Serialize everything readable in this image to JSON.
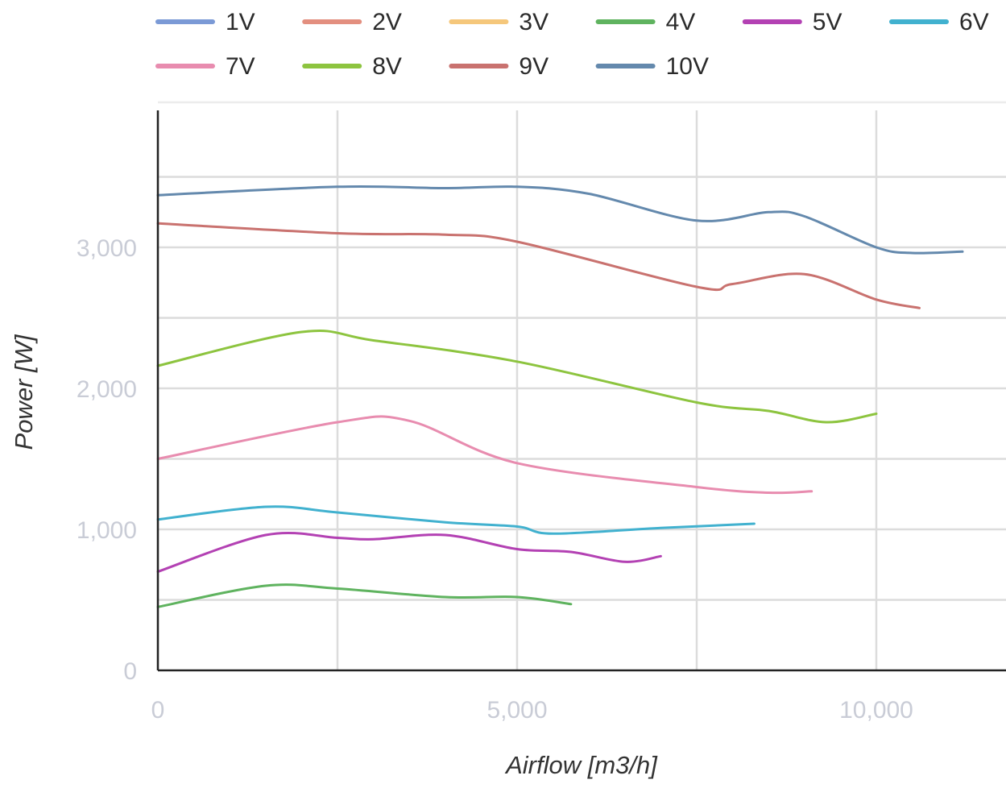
{
  "chart_data": {
    "type": "line",
    "title": "",
    "xlabel": "Airflow [m3/h]",
    "ylabel": "Power [W]",
    "xlim": [
      0,
      11900
    ],
    "ylim": [
      0,
      4000
    ],
    "x_ticks": [
      {
        "value": 0,
        "label": "0"
      },
      {
        "value": 5000,
        "label": "5,000"
      },
      {
        "value": 10000,
        "label": "10,000"
      }
    ],
    "y_ticks": [
      {
        "value": 0,
        "label": "0"
      },
      {
        "value": 1000,
        "label": "1,000"
      },
      {
        "value": 2000,
        "label": "2,000"
      },
      {
        "value": 3000,
        "label": "3,000"
      }
    ],
    "x_grid": [
      0,
      2500,
      5000,
      7500,
      10000
    ],
    "y_grid": [
      500,
      1000,
      1500,
      2000,
      2500,
      3000,
      3500
    ],
    "grid": true,
    "legend_position": "top",
    "series": [
      {
        "name": "1V",
        "color": "#7b9ad6",
        "points": []
      },
      {
        "name": "2V",
        "color": "#e38f7f",
        "points": []
      },
      {
        "name": "3V",
        "color": "#f5c77b",
        "points": []
      },
      {
        "name": "4V",
        "color": "#5fb35f",
        "points": [
          [
            0,
            450
          ],
          [
            1500,
            600
          ],
          [
            2500,
            580
          ],
          [
            4000,
            520
          ],
          [
            5000,
            520
          ],
          [
            5750,
            470
          ]
        ]
      },
      {
        "name": "5V",
        "color": "#b341b3",
        "points": [
          [
            0,
            700
          ],
          [
            1500,
            960
          ],
          [
            2500,
            940
          ],
          [
            3000,
            930
          ],
          [
            4000,
            960
          ],
          [
            5000,
            860
          ],
          [
            5750,
            840
          ],
          [
            6500,
            770
          ],
          [
            7000,
            810
          ]
        ]
      },
      {
        "name": "6V",
        "color": "#41b1cf",
        "points": [
          [
            0,
            1070
          ],
          [
            1500,
            1160
          ],
          [
            2500,
            1120
          ],
          [
            4000,
            1050
          ],
          [
            5000,
            1020
          ],
          [
            5500,
            970
          ],
          [
            7000,
            1010
          ],
          [
            8300,
            1040
          ]
        ]
      },
      {
        "name": "7V",
        "color": "#e88caf",
        "points": [
          [
            0,
            1500
          ],
          [
            2500,
            1760
          ],
          [
            3500,
            1770
          ],
          [
            5000,
            1470
          ],
          [
            7500,
            1300
          ],
          [
            8500,
            1260
          ],
          [
            9100,
            1270
          ]
        ]
      },
      {
        "name": "8V",
        "color": "#8dc43f",
        "points": [
          [
            0,
            2160
          ],
          [
            2000,
            2400
          ],
          [
            3000,
            2340
          ],
          [
            5000,
            2190
          ],
          [
            7500,
            1900
          ],
          [
            8500,
            1840
          ],
          [
            9300,
            1760
          ],
          [
            10000,
            1820
          ]
        ]
      },
      {
        "name": "9V",
        "color": "#c9726f",
        "points": [
          [
            0,
            3170
          ],
          [
            2500,
            3100
          ],
          [
            4000,
            3090
          ],
          [
            5000,
            3040
          ],
          [
            7500,
            2720
          ],
          [
            8000,
            2740
          ],
          [
            9000,
            2810
          ],
          [
            10000,
            2630
          ],
          [
            10600,
            2570
          ]
        ]
      },
      {
        "name": "10V",
        "color": "#6489ad",
        "points": [
          [
            0,
            3370
          ],
          [
            2500,
            3430
          ],
          [
            4000,
            3420
          ],
          [
            5000,
            3430
          ],
          [
            6000,
            3380
          ],
          [
            7500,
            3190
          ],
          [
            8500,
            3250
          ],
          [
            9000,
            3220
          ],
          [
            10000,
            3000
          ],
          [
            10500,
            2960
          ],
          [
            11200,
            2970
          ]
        ]
      }
    ]
  }
}
